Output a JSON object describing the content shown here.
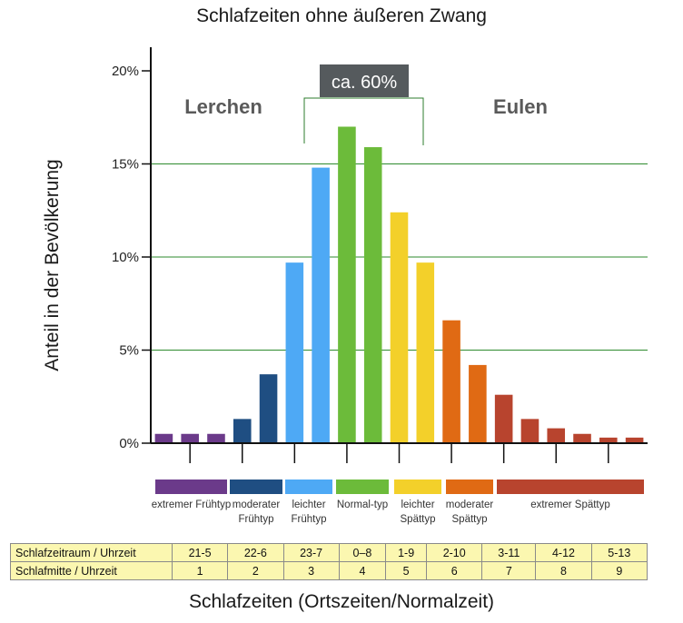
{
  "title": "Schlafzeiten ohne äußeren Zwang",
  "xlabel": "Schlafzeiten (Ortszeiten/Normalzeit)",
  "ylabel": "Anteil in der Bevölkerung",
  "annotation": {
    "bracket_label": "ca. 60%",
    "left_group": "Lerchen",
    "right_group": "Eulen"
  },
  "colors": {
    "extrem_frueh": "#6b3a8a",
    "moderat_frueh": "#1f4e82",
    "leicht_frueh": "#4ea9f5",
    "normal": "#6cbb3a",
    "leicht_spaet": "#f3d02a",
    "moderat_spaet": "#e06a14",
    "extrem_spaet": "#b8442e"
  },
  "chart_data": {
    "type": "bar",
    "title": "Schlafzeiten ohne äußeren Zwang",
    "xlabel": "Schlafzeiten (Ortszeiten/Normalzeit)",
    "ylabel": "Anteil in der Bevölkerung",
    "ylim": [
      0,
      20
    ],
    "yticks": [
      "0%",
      "5%",
      "10%",
      "15%",
      "20%"
    ],
    "grid": true,
    "values": [
      0.5,
      0.5,
      0.5,
      1.3,
      3.7,
      9.7,
      14.8,
      17.0,
      15.9,
      12.4,
      9.7,
      6.6,
      4.2,
      2.6,
      1.3,
      0.8,
      0.5,
      0.3,
      0.3
    ],
    "bar_groups": [
      "extrem_frueh",
      "extrem_frueh",
      "extrem_frueh",
      "moderat_frueh",
      "moderat_frueh",
      "leicht_frueh",
      "leicht_frueh",
      "normal",
      "normal",
      "leicht_spaet",
      "leicht_spaet",
      "moderat_spaet",
      "moderat_spaet",
      "extrem_spaet",
      "extrem_spaet",
      "extrem_spaet",
      "extrem_spaet",
      "extrem_spaet",
      "extrem_spaet"
    ]
  },
  "chronotypes": [
    {
      "key": "extrem_frueh",
      "label": "extremer Frühtyp"
    },
    {
      "key": "moderat_frueh",
      "label": "moderater Frühtyp"
    },
    {
      "key": "leicht_frueh",
      "label": "leichter Frühtyp"
    },
    {
      "key": "normal",
      "label": "Normal-typ"
    },
    {
      "key": "leicht_spaet",
      "label": "leichter Spättyp"
    },
    {
      "key": "moderat_spaet",
      "label": "moderater Spättyp"
    },
    {
      "key": "extrem_spaet",
      "label": "extremer Spättyp"
    }
  ],
  "schedule": {
    "row1_label": "Schlafzeitraum / Uhrzeit",
    "row1": [
      "21-5",
      "22-6",
      "23-7",
      "0–8",
      "1-9",
      "2-10",
      "3-11",
      "4-12",
      "5-13"
    ],
    "row2_label": "Schlafmitte / Uhrzeit",
    "row2": [
      "1",
      "2",
      "3",
      "4",
      "5",
      "6",
      "7",
      "8",
      "9"
    ]
  }
}
